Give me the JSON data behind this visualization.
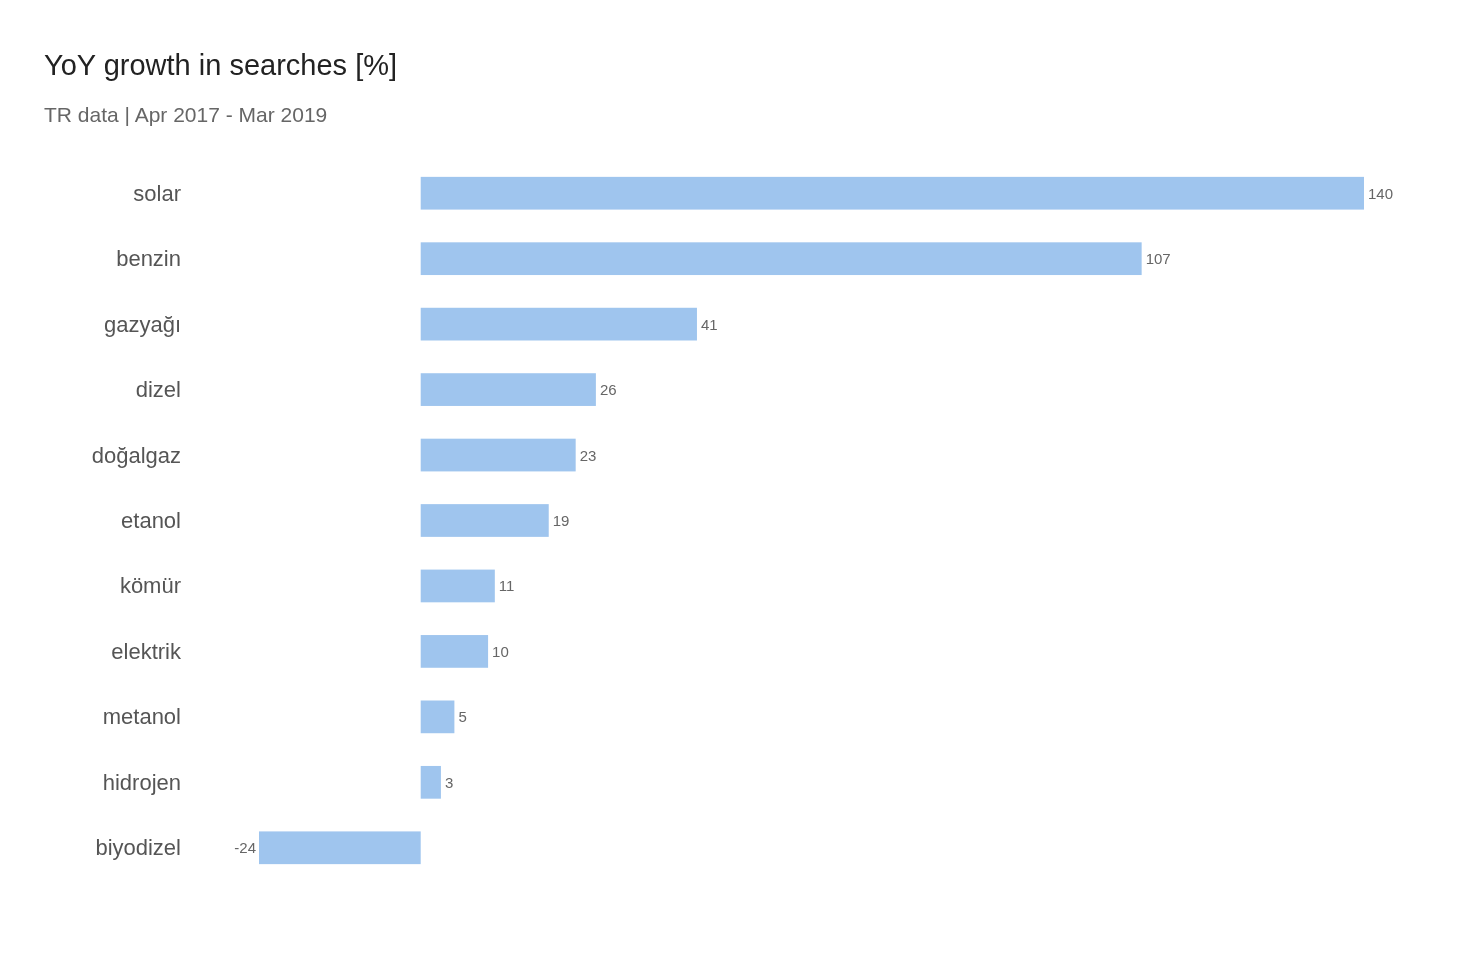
{
  "chart_data": {
    "type": "bar",
    "orientation": "horizontal",
    "title": "YoY growth in searches [%]",
    "subtitle": "TR data | Apr 2017 - Mar 2019",
    "categories": [
      "solar",
      "benzin",
      "gazyağı",
      "dizel",
      "doğalgaz",
      "etanol",
      "kömür",
      "elektrik",
      "metanol",
      "hidrojen",
      "biyodizel"
    ],
    "values": [
      140,
      107,
      41,
      26,
      23,
      19,
      11,
      10,
      5,
      3,
      -24
    ],
    "color": "#9fc5ee",
    "xlim": [
      -24,
      140
    ],
    "data_labels": true
  }
}
